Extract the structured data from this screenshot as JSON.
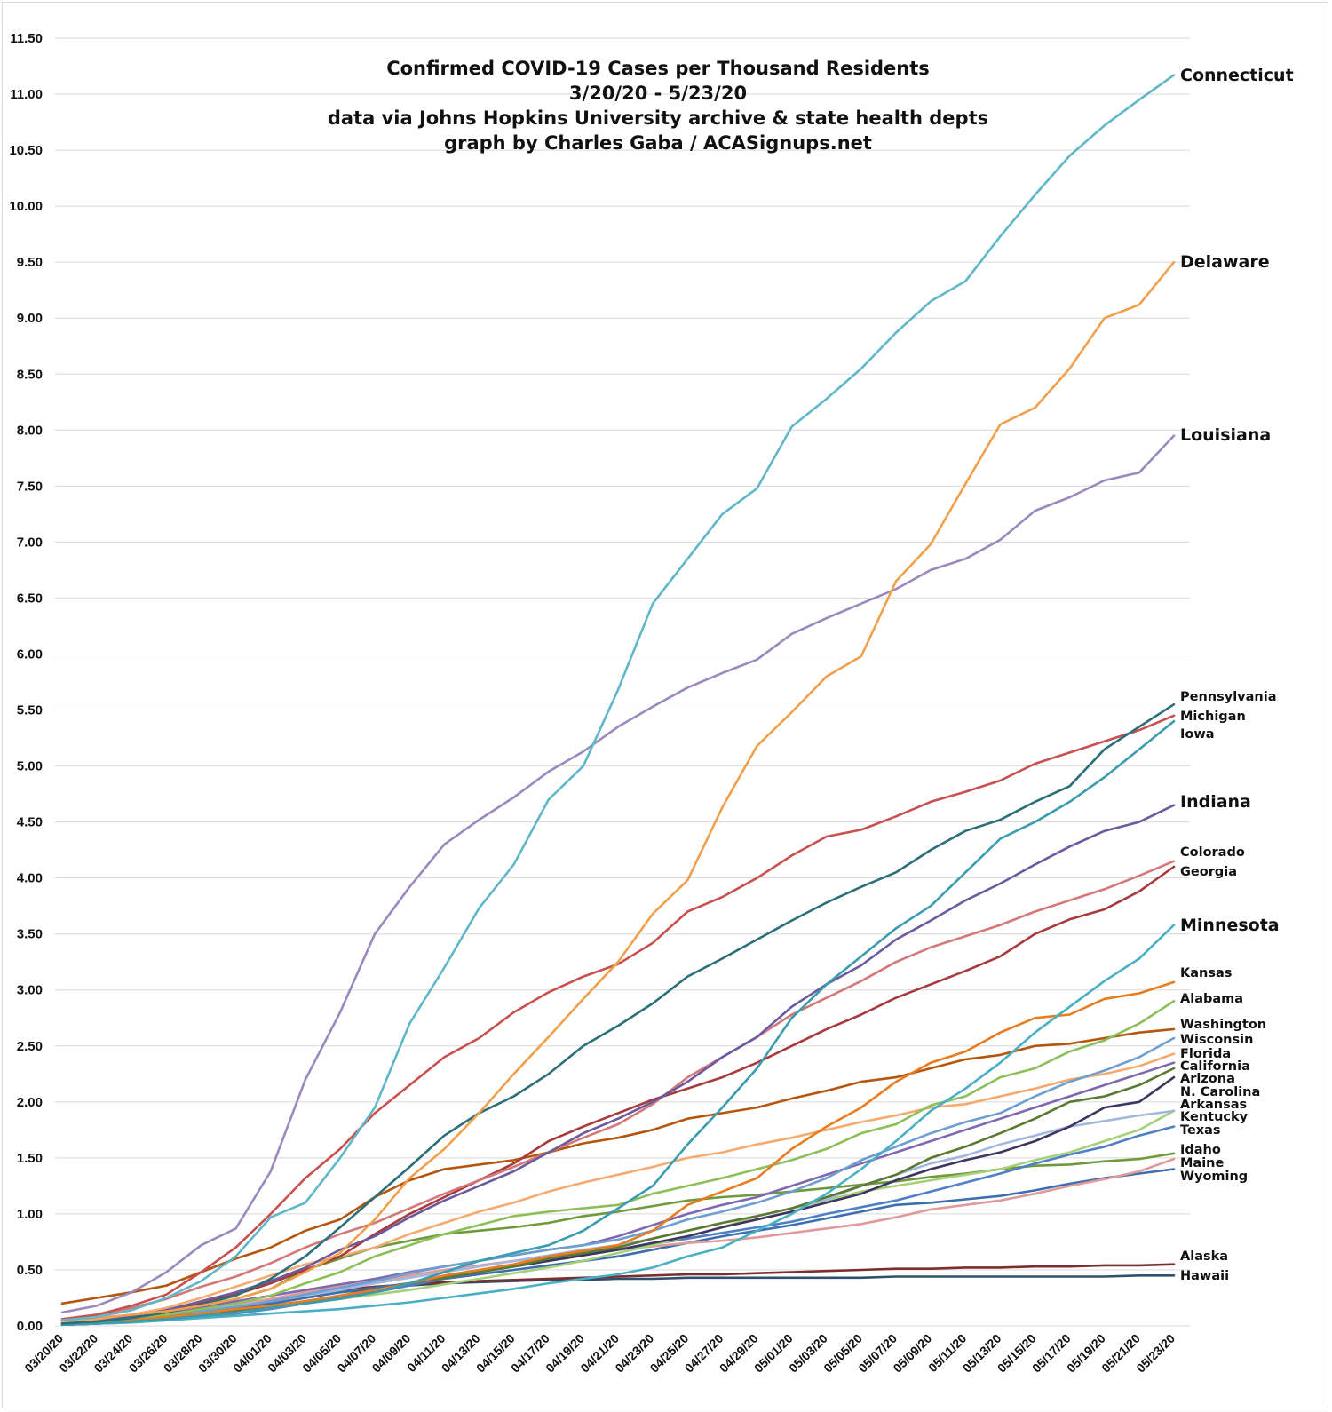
{
  "chart_data": {
    "type": "line",
    "title": [
      "Confirmed COVID-19 Cases per Thousand Residents",
      "3/20/20 - 5/23/20",
      "data via Johns Hopkins University archive & state health depts",
      "graph by Charles Gaba / ACASignups.net"
    ],
    "xlabel": "",
    "ylabel": "",
    "ylim": [
      0,
      11.5
    ],
    "yticks": [
      "0.00",
      "0.50",
      "1.00",
      "1.50",
      "2.00",
      "2.50",
      "3.00",
      "3.50",
      "4.00",
      "4.50",
      "5.00",
      "5.50",
      "6.00",
      "6.50",
      "7.00",
      "7.50",
      "8.00",
      "8.50",
      "9.00",
      "9.50",
      "10.00",
      "10.50",
      "11.00",
      "11.50"
    ],
    "grid": true,
    "legend": "direct labels at right end of each line",
    "x": [
      "03/20/20",
      "03/22/20",
      "03/24/20",
      "03/26/20",
      "03/28/20",
      "03/30/20",
      "04/01/20",
      "04/03/20",
      "04/05/20",
      "04/07/20",
      "04/09/20",
      "04/11/20",
      "04/13/20",
      "04/15/20",
      "04/17/20",
      "04/19/20",
      "04/21/20",
      "04/23/20",
      "04/25/20",
      "04/27/20",
      "04/29/20",
      "05/01/20",
      "05/03/20",
      "05/05/20",
      "05/07/20",
      "05/09/20",
      "05/11/20",
      "05/13/20",
      "05/15/20",
      "05/17/20",
      "05/19/20",
      "05/21/20",
      "05/23/20"
    ],
    "series": [
      {
        "name": "Connecticut",
        "color": "#5fb7c8",
        "label_size": "large",
        "values": [
          0.05,
          0.08,
          0.14,
          0.25,
          0.4,
          0.62,
          0.97,
          1.1,
          1.5,
          1.95,
          2.7,
          3.2,
          3.73,
          4.12,
          4.7,
          5.0,
          5.68,
          6.45,
          6.85,
          7.25,
          7.48,
          8.03,
          8.28,
          8.55,
          8.87,
          9.15,
          9.33,
          9.73,
          10.1,
          10.45,
          10.72,
          10.95,
          11.17
        ]
      },
      {
        "name": "Delaware",
        "color": "#f0a04b",
        "label_size": "large",
        "values": [
          0.05,
          0.07,
          0.1,
          0.13,
          0.18,
          0.24,
          0.33,
          0.48,
          0.65,
          0.95,
          1.32,
          1.58,
          1.9,
          2.25,
          2.58,
          2.92,
          3.25,
          3.68,
          3.98,
          4.63,
          5.18,
          5.48,
          5.8,
          5.98,
          6.65,
          6.98,
          7.52,
          8.05,
          8.2,
          8.55,
          9.0,
          9.12,
          9.5
        ]
      },
      {
        "name": "Louisiana",
        "color": "#9b89bd",
        "label_size": "large",
        "values": [
          0.12,
          0.18,
          0.3,
          0.48,
          0.72,
          0.87,
          1.38,
          2.2,
          2.8,
          3.5,
          3.92,
          4.3,
          4.52,
          4.72,
          4.95,
          5.13,
          5.35,
          5.53,
          5.7,
          5.83,
          5.95,
          6.18,
          6.32,
          6.45,
          6.58,
          6.75,
          6.85,
          7.02,
          7.28,
          7.4,
          7.55,
          7.62,
          7.95
        ]
      },
      {
        "name": "Pennsylvania",
        "color": "#2a6f7a",
        "label_size": "small",
        "values": [
          0.02,
          0.04,
          0.07,
          0.12,
          0.19,
          0.27,
          0.42,
          0.62,
          0.88,
          1.15,
          1.42,
          1.7,
          1.9,
          2.05,
          2.25,
          2.5,
          2.68,
          2.88,
          3.12,
          3.28,
          3.45,
          3.62,
          3.78,
          3.92,
          4.05,
          4.25,
          4.42,
          4.52,
          4.68,
          4.82,
          5.15,
          5.35,
          5.55
        ]
      },
      {
        "name": "Michigan",
        "color": "#c9504f",
        "label_size": "small",
        "values": [
          0.06,
          0.1,
          0.18,
          0.28,
          0.48,
          0.7,
          1.0,
          1.32,
          1.58,
          1.9,
          2.15,
          2.4,
          2.57,
          2.8,
          2.98,
          3.12,
          3.23,
          3.42,
          3.7,
          3.83,
          4.0,
          4.2,
          4.37,
          4.43,
          4.55,
          4.68,
          4.77,
          4.87,
          5.02,
          5.12,
          5.22,
          5.32,
          5.45
        ]
      },
      {
        "name": "Iowa",
        "color": "#3a9cae",
        "label_size": "small",
        "values": [
          0.01,
          0.02,
          0.04,
          0.06,
          0.09,
          0.12,
          0.16,
          0.2,
          0.24,
          0.3,
          0.38,
          0.48,
          0.58,
          0.65,
          0.72,
          0.85,
          1.05,
          1.25,
          1.62,
          1.95,
          2.3,
          2.75,
          3.05,
          3.3,
          3.55,
          3.75,
          4.05,
          4.35,
          4.5,
          4.68,
          4.9,
          5.15,
          5.4
        ]
      },
      {
        "name": "Indiana",
        "color": "#6b5a9e",
        "label_size": "large",
        "values": [
          0.02,
          0.04,
          0.08,
          0.14,
          0.22,
          0.3,
          0.4,
          0.52,
          0.68,
          0.8,
          0.97,
          1.12,
          1.25,
          1.38,
          1.55,
          1.72,
          1.85,
          2.0,
          2.18,
          2.4,
          2.58,
          2.85,
          3.05,
          3.22,
          3.45,
          3.62,
          3.8,
          3.95,
          4.12,
          4.28,
          4.42,
          4.5,
          4.65
        ]
      },
      {
        "name": "Colorado",
        "color": "#d4787a",
        "label_size": "small",
        "values": [
          0.06,
          0.1,
          0.16,
          0.24,
          0.35,
          0.44,
          0.56,
          0.7,
          0.82,
          0.92,
          1.05,
          1.18,
          1.3,
          1.42,
          1.55,
          1.68,
          1.8,
          1.98,
          2.22,
          2.4,
          2.58,
          2.78,
          2.93,
          3.08,
          3.25,
          3.38,
          3.48,
          3.58,
          3.7,
          3.8,
          3.9,
          4.02,
          4.15
        ]
      },
      {
        "name": "Georgia",
        "color": "#a83a3e",
        "label_size": "small",
        "values": [
          0.02,
          0.04,
          0.08,
          0.14,
          0.2,
          0.28,
          0.38,
          0.5,
          0.62,
          0.82,
          1.0,
          1.15,
          1.3,
          1.45,
          1.65,
          1.78,
          1.9,
          2.02,
          2.12,
          2.22,
          2.35,
          2.5,
          2.65,
          2.78,
          2.93,
          3.05,
          3.17,
          3.3,
          3.5,
          3.63,
          3.72,
          3.88,
          4.1
        ]
      },
      {
        "name": "Minnesota",
        "color": "#4aafc4",
        "label_size": "large",
        "values": [
          0.01,
          0.02,
          0.03,
          0.05,
          0.07,
          0.09,
          0.11,
          0.13,
          0.15,
          0.18,
          0.21,
          0.25,
          0.29,
          0.33,
          0.38,
          0.42,
          0.46,
          0.52,
          0.62,
          0.7,
          0.85,
          1.0,
          1.18,
          1.4,
          1.65,
          1.92,
          2.12,
          2.35,
          2.62,
          2.85,
          3.08,
          3.28,
          3.58
        ]
      },
      {
        "name": "Kansas",
        "color": "#e87c1e",
        "label_size": "small",
        "values": [
          0.01,
          0.03,
          0.05,
          0.08,
          0.11,
          0.15,
          0.18,
          0.22,
          0.27,
          0.32,
          0.38,
          0.45,
          0.5,
          0.55,
          0.62,
          0.67,
          0.72,
          0.85,
          1.08,
          1.2,
          1.32,
          1.58,
          1.78,
          1.95,
          2.18,
          2.35,
          2.45,
          2.62,
          2.75,
          2.78,
          2.92,
          2.97,
          3.07
        ]
      },
      {
        "name": "Alabama",
        "color": "#8cbf5a",
        "label_size": "small",
        "values": [
          0.02,
          0.04,
          0.07,
          0.1,
          0.15,
          0.2,
          0.27,
          0.38,
          0.48,
          0.62,
          0.72,
          0.82,
          0.9,
          0.98,
          1.02,
          1.05,
          1.08,
          1.18,
          1.25,
          1.32,
          1.4,
          1.48,
          1.58,
          1.72,
          1.8,
          1.97,
          2.05,
          2.22,
          2.3,
          2.45,
          2.55,
          2.7,
          2.9
        ]
      },
      {
        "name": "Washington",
        "color": "#b5560e",
        "label_size": "small",
        "values": [
          0.2,
          0.25,
          0.3,
          0.36,
          0.48,
          0.6,
          0.7,
          0.85,
          0.95,
          1.15,
          1.3,
          1.4,
          1.44,
          1.48,
          1.55,
          1.63,
          1.68,
          1.75,
          1.85,
          1.9,
          1.95,
          2.03,
          2.1,
          2.18,
          2.22,
          2.3,
          2.38,
          2.42,
          2.5,
          2.52,
          2.57,
          2.62,
          2.65
        ]
      },
      {
        "name": "Wisconsin",
        "color": "#6d9fd0",
        "label_size": "small",
        "values": [
          0.02,
          0.03,
          0.06,
          0.09,
          0.13,
          0.17,
          0.22,
          0.28,
          0.34,
          0.4,
          0.47,
          0.53,
          0.58,
          0.63,
          0.68,
          0.72,
          0.77,
          0.85,
          0.95,
          1.02,
          1.1,
          1.2,
          1.32,
          1.48,
          1.6,
          1.72,
          1.82,
          1.9,
          2.05,
          2.18,
          2.28,
          2.4,
          2.57
        ]
      },
      {
        "name": "Florida",
        "color": "#f5aa70",
        "label_size": "small",
        "values": [
          0.03,
          0.06,
          0.1,
          0.16,
          0.25,
          0.35,
          0.45,
          0.55,
          0.62,
          0.7,
          0.82,
          0.92,
          1.02,
          1.1,
          1.2,
          1.28,
          1.35,
          1.42,
          1.5,
          1.55,
          1.62,
          1.68,
          1.75,
          1.82,
          1.88,
          1.95,
          1.98,
          2.05,
          2.12,
          2.2,
          2.25,
          2.32,
          2.43
        ]
      },
      {
        "name": "California",
        "color": "#8068b0",
        "label_size": "small",
        "values": [
          0.03,
          0.05,
          0.08,
          0.12,
          0.17,
          0.22,
          0.27,
          0.32,
          0.37,
          0.42,
          0.48,
          0.53,
          0.58,
          0.63,
          0.68,
          0.72,
          0.8,
          0.9,
          1.0,
          1.08,
          1.15,
          1.25,
          1.35,
          1.45,
          1.55,
          1.65,
          1.75,
          1.85,
          1.95,
          2.05,
          2.15,
          2.25,
          2.35
        ]
      },
      {
        "name": "Arizona",
        "color": "#5a7a32",
        "label_size": "small",
        "values": [
          0.01,
          0.02,
          0.04,
          0.07,
          0.1,
          0.14,
          0.18,
          0.22,
          0.27,
          0.32,
          0.38,
          0.43,
          0.48,
          0.53,
          0.6,
          0.65,
          0.7,
          0.78,
          0.85,
          0.92,
          0.98,
          1.05,
          1.15,
          1.25,
          1.35,
          1.5,
          1.6,
          1.72,
          1.85,
          2.0,
          2.05,
          2.15,
          2.3
        ]
      },
      {
        "name": "N. Carolina",
        "color": "#3e3560",
        "label_size": "small",
        "values": [
          0.01,
          0.02,
          0.04,
          0.07,
          0.1,
          0.14,
          0.18,
          0.22,
          0.27,
          0.32,
          0.38,
          0.43,
          0.48,
          0.53,
          0.58,
          0.63,
          0.68,
          0.74,
          0.8,
          0.88,
          0.95,
          1.02,
          1.1,
          1.18,
          1.3,
          1.4,
          1.48,
          1.55,
          1.65,
          1.78,
          1.95,
          2.0,
          2.22
        ]
      },
      {
        "name": "Arkansas",
        "color": "#a3b8dc",
        "label_size": "small",
        "values": [
          0.02,
          0.04,
          0.07,
          0.1,
          0.14,
          0.18,
          0.22,
          0.27,
          0.32,
          0.38,
          0.43,
          0.48,
          0.53,
          0.58,
          0.63,
          0.68,
          0.72,
          0.78,
          0.85,
          0.92,
          0.98,
          1.05,
          1.13,
          1.25,
          1.35,
          1.45,
          1.52,
          1.62,
          1.7,
          1.78,
          1.83,
          1.88,
          1.92
        ]
      },
      {
        "name": "Kentucky",
        "color": "#a6d07a",
        "label_size": "small",
        "values": [
          0.01,
          0.02,
          0.04,
          0.06,
          0.09,
          0.12,
          0.16,
          0.2,
          0.24,
          0.28,
          0.32,
          0.37,
          0.42,
          0.47,
          0.52,
          0.58,
          0.65,
          0.72,
          0.8,
          0.88,
          0.98,
          1.05,
          1.12,
          1.2,
          1.25,
          1.3,
          1.35,
          1.4,
          1.48,
          1.55,
          1.65,
          1.75,
          1.92
        ]
      },
      {
        "name": "Texas",
        "color": "#4f7fc4",
        "label_size": "small",
        "values": [
          0.01,
          0.02,
          0.03,
          0.05,
          0.08,
          0.11,
          0.15,
          0.2,
          0.25,
          0.3,
          0.36,
          0.42,
          0.48,
          0.53,
          0.58,
          0.63,
          0.68,
          0.73,
          0.78,
          0.83,
          0.88,
          0.93,
          1.0,
          1.06,
          1.12,
          1.2,
          1.28,
          1.36,
          1.45,
          1.53,
          1.6,
          1.7,
          1.78
        ]
      },
      {
        "name": "Idaho",
        "color": "#6e9a3c",
        "label_size": "small",
        "values": [
          0.01,
          0.03,
          0.06,
          0.1,
          0.16,
          0.24,
          0.33,
          0.5,
          0.6,
          0.7,
          0.76,
          0.82,
          0.85,
          0.88,
          0.92,
          0.98,
          1.02,
          1.07,
          1.12,
          1.15,
          1.17,
          1.2,
          1.23,
          1.26,
          1.29,
          1.33,
          1.36,
          1.4,
          1.43,
          1.44,
          1.47,
          1.49,
          1.54
        ]
      },
      {
        "name": "Maine",
        "color": "#e09a9a",
        "label_size": "small",
        "values": [
          0.02,
          0.04,
          0.07,
          0.1,
          0.14,
          0.19,
          0.24,
          0.3,
          0.35,
          0.4,
          0.45,
          0.5,
          0.54,
          0.58,
          0.62,
          0.65,
          0.68,
          0.71,
          0.74,
          0.76,
          0.79,
          0.83,
          0.87,
          0.91,
          0.97,
          1.04,
          1.08,
          1.12,
          1.18,
          1.25,
          1.31,
          1.38,
          1.49
        ]
      },
      {
        "name": "Wyoming",
        "color": "#3d6eb0",
        "label_size": "small",
        "values": [
          0.02,
          0.04,
          0.06,
          0.09,
          0.12,
          0.16,
          0.2,
          0.25,
          0.3,
          0.34,
          0.38,
          0.42,
          0.46,
          0.5,
          0.54,
          0.58,
          0.62,
          0.68,
          0.74,
          0.8,
          0.85,
          0.9,
          0.96,
          1.02,
          1.08,
          1.1,
          1.13,
          1.16,
          1.21,
          1.27,
          1.32,
          1.36,
          1.4
        ]
      },
      {
        "name": "Alaska",
        "color": "#7a2e2e",
        "label_size": "small",
        "values": [
          0.02,
          0.04,
          0.07,
          0.1,
          0.14,
          0.18,
          0.23,
          0.27,
          0.32,
          0.35,
          0.37,
          0.39,
          0.4,
          0.41,
          0.42,
          0.43,
          0.44,
          0.45,
          0.46,
          0.46,
          0.47,
          0.48,
          0.49,
          0.5,
          0.51,
          0.51,
          0.52,
          0.52,
          0.53,
          0.53,
          0.54,
          0.54,
          0.55
        ]
      },
      {
        "name": "Hawaii",
        "color": "#2f4f70",
        "label_size": "small",
        "values": [
          0.02,
          0.04,
          0.06,
          0.09,
          0.12,
          0.16,
          0.2,
          0.25,
          0.3,
          0.33,
          0.36,
          0.38,
          0.39,
          0.4,
          0.41,
          0.41,
          0.42,
          0.42,
          0.43,
          0.43,
          0.43,
          0.43,
          0.43,
          0.43,
          0.44,
          0.44,
          0.44,
          0.44,
          0.44,
          0.44,
          0.44,
          0.45,
          0.45
        ]
      }
    ]
  }
}
